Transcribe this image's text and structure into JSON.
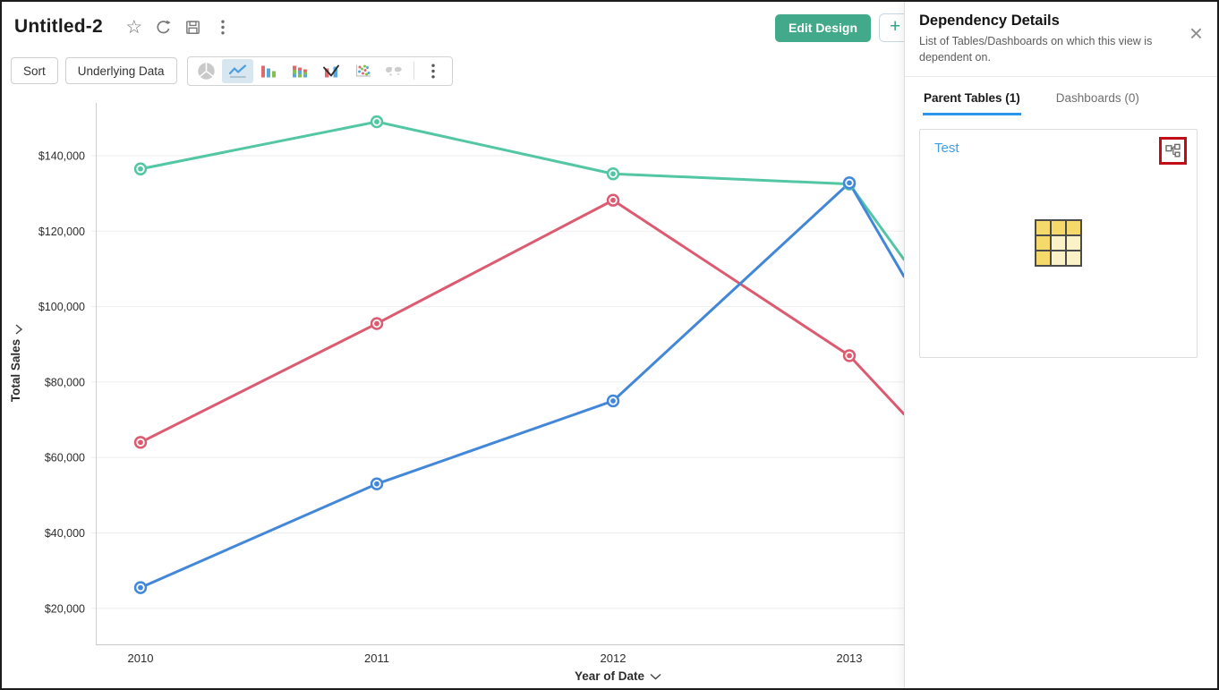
{
  "header": {
    "title": "Untitled-2",
    "icon_actions": [
      "favorite-star",
      "refresh",
      "save",
      "more-options"
    ],
    "edit_design_label": "Edit Design",
    "add_view_label": "+"
  },
  "toolbar": {
    "sort_label": "Sort",
    "underlying_data_label": "Underlying Data",
    "chart_type_icons": [
      "pie-chart",
      "line-chart",
      "bar-chart",
      "stacked-bar-chart",
      "combo-chart",
      "scatter-plot",
      "map-chart"
    ],
    "selected_chart_type": "line-chart",
    "disabled_chart_types": [
      "pie-chart",
      "map-chart"
    ]
  },
  "chart_data": {
    "type": "line",
    "title": "",
    "xlabel": "Year of Date",
    "ylabel": "Total Sales",
    "categories": [
      "2010",
      "2011",
      "2012",
      "2013"
    ],
    "series": [
      {
        "name": "green-series",
        "color": "#53C6A4",
        "values": [
          136500,
          149000,
          135200,
          132500
        ],
        "clipped_next_value": 112500
      },
      {
        "name": "red-series",
        "color": "#DC5B71",
        "values": [
          64000,
          95500,
          128200,
          87000
        ],
        "clipped_next_value": 71500
      },
      {
        "name": "blue-series",
        "color": "#4287D8",
        "values": [
          25500,
          53000,
          75000,
          132800
        ],
        "clipped_next_value": 108000
      }
    ],
    "y_ticks": [
      {
        "value": 140000,
        "label": "$140,000"
      },
      {
        "value": 120000,
        "label": "$120,000"
      },
      {
        "value": 100000,
        "label": "$100,000"
      },
      {
        "value": 80000,
        "label": "$80,000"
      },
      {
        "value": 60000,
        "label": "$60,000"
      },
      {
        "value": 40000,
        "label": "$40,000"
      },
      {
        "value": 20000,
        "label": "$20,000"
      }
    ],
    "ylim": [
      10500,
      154000
    ],
    "grid": "horizontal",
    "legend": "none",
    "clipped_right_edge": true
  },
  "panel": {
    "title": "Dependency Details",
    "subtitle": "List of Tables/Dashboards on which this view is dependent on.",
    "close_label": "×",
    "tabs": [
      {
        "label": "Parent Tables (1)",
        "active": true
      },
      {
        "label": "Dashboards (0)",
        "active": false
      }
    ],
    "card": {
      "table_name": "Test",
      "action_icon": "dependency-tree-icon",
      "thumbnail_icon": "table-grid-icon"
    }
  },
  "colors": {
    "accent_green": "#43A98B",
    "tab_active_blue": "#2D96EC",
    "link_blue": "#3E9EE6",
    "highlight_red": "#C00D18",
    "table_icon_yellow_dark": "#F6D96B",
    "table_icon_yellow_light": "#FBF2C7"
  }
}
